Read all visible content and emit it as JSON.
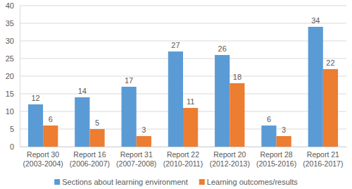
{
  "chart_data": {
    "type": "bar",
    "categories": [
      "Report 30\n(2003-2004)",
      "Report 16\n(2006-2007)",
      "Report 31\n(2007-2008)",
      "Report 22\n(2010-2011)",
      "Report 20\n(2012-2013)",
      "Report 28\n(2015-2016)",
      "Report 21\n(2016-2017)"
    ],
    "series": [
      {
        "name": "Sections about learning environment",
        "color": "#5b9bd5",
        "values": [
          12,
          14,
          17,
          27,
          26,
          6,
          34
        ]
      },
      {
        "name": "Learning outcomes/results",
        "color": "#ed7d31",
        "values": [
          6,
          5,
          3,
          11,
          18,
          3,
          22
        ]
      }
    ],
    "ylim": [
      0,
      40
    ],
    "yticks": [
      0,
      5,
      10,
      15,
      20,
      25,
      30,
      35,
      40
    ],
    "grid": true,
    "data_labels": true,
    "legend": "bottom"
  }
}
